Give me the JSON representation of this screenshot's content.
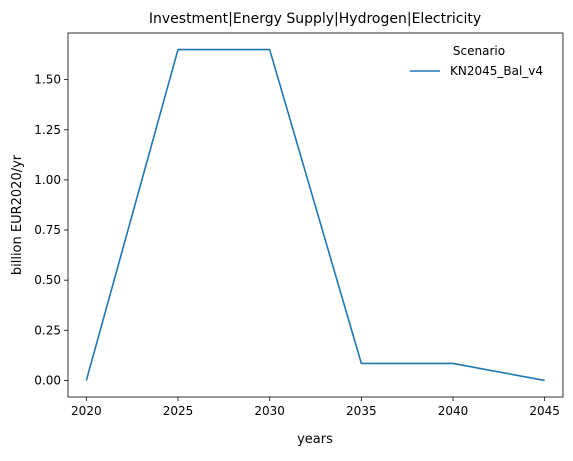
{
  "chart_data": {
    "type": "line",
    "title": "Investment|Energy Supply|Hydrogen|Electricity",
    "xlabel": "years",
    "ylabel": "billion EUR2020/yr",
    "x": [
      2020,
      2025,
      2030,
      2035,
      2040,
      2045
    ],
    "xlim": [
      2019,
      2046
    ],
    "ylim": [
      -0.0825,
      1.7325
    ],
    "xticks": [
      2020,
      2025,
      2030,
      2035,
      2040,
      2045
    ],
    "xtick_labels": [
      "2020",
      "2025",
      "2030",
      "2035",
      "2040",
      "2045"
    ],
    "yticks": [
      0,
      0.25,
      0.5,
      0.75,
      1.0,
      1.25,
      1.5
    ],
    "ytick_labels": [
      "0.00",
      "0.25",
      "0.50",
      "0.75",
      "1.00",
      "1.25",
      "1.50"
    ],
    "grid": false,
    "legend": {
      "title": "Scenario",
      "placement": "top-right"
    },
    "series": [
      {
        "name": "KN2045_Bal_v4",
        "color": "#1f77b4",
        "values": [
          0.0,
          1.65,
          1.65,
          0.085,
          0.085,
          0.0
        ]
      }
    ]
  }
}
